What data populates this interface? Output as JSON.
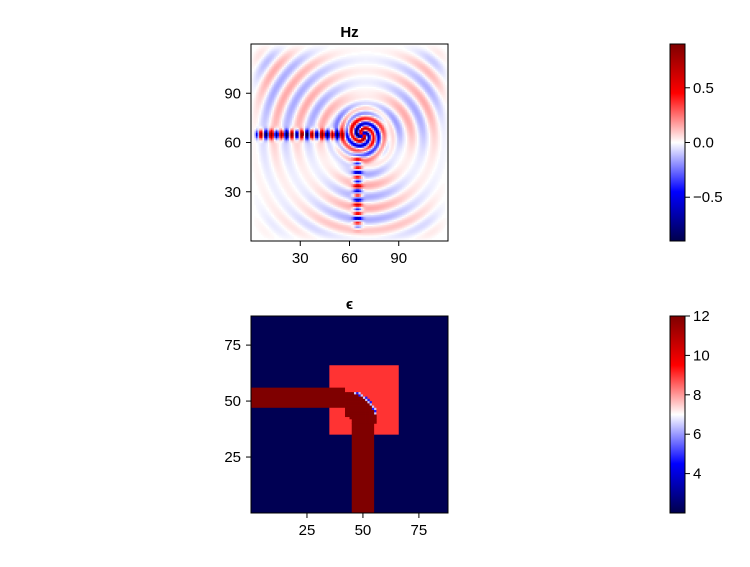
{
  "colors": {
    "colormap_low": "#00004c",
    "colormap_mid": "#ffffff",
    "colormap_high": "#7f0000",
    "eps_background": "#00004c",
    "eps_waveguide": "#7f0000",
    "eps_design_region": "#ff8a8a"
  },
  "chart_data": [
    {
      "type": "heatmap",
      "title": "Hz",
      "xlim": [
        0,
        120
      ],
      "ylim": [
        0,
        120
      ],
      "xticks": [
        30,
        60,
        90
      ],
      "yticks": [
        30,
        60,
        90
      ],
      "colorbar": {
        "range": [
          -0.9,
          0.9
        ],
        "ticks": [
          0.5,
          0.0,
          -0.5
        ],
        "tick_labels": [
          "0.5",
          "0.0",
          "−0.5"
        ]
      },
      "fields": [
        {
          "name": "horizontal input mode",
          "x_range": [
            5,
            52
          ],
          "y": 65,
          "amplitude": 0.9
        },
        {
          "name": "vertical output mode",
          "x": 65,
          "y_range": [
            12,
            48
          ],
          "amplitude": 0.55
        },
        {
          "name": "bend scattering",
          "center": [
            68,
            65
          ],
          "amplitude": 0.8
        },
        {
          "name": "radiated background",
          "amplitude": 0.15
        }
      ]
    },
    {
      "type": "heatmap",
      "title": "ϵ",
      "xlim": [
        0,
        88
      ],
      "ylim": [
        0,
        88
      ],
      "xticks": [
        25,
        50,
        75
      ],
      "yticks": [
        25,
        50,
        75
      ],
      "colorbar": {
        "range": [
          2,
          12
        ],
        "ticks": [
          12,
          10,
          8,
          6,
          4
        ],
        "tick_labels": [
          "12",
          "10",
          "8",
          "6",
          "4"
        ]
      },
      "regions": [
        {
          "name": "background",
          "eps": 2.1
        },
        {
          "name": "design region",
          "x_range": [
            35,
            66
          ],
          "y_range": [
            35,
            66
          ],
          "eps": 9.0
        },
        {
          "name": "input waveguide",
          "x_range": [
            0,
            42
          ],
          "y_range": [
            47,
            56
          ],
          "eps": 12.0
        },
        {
          "name": "output waveguide",
          "x_range": [
            45,
            55
          ],
          "y_range": [
            0,
            40
          ],
          "eps": 12.0
        },
        {
          "name": "bend",
          "center": [
            42,
            40
          ],
          "inner_radius": 3,
          "outer_radius": 14,
          "eps": 12.0
        }
      ]
    }
  ]
}
